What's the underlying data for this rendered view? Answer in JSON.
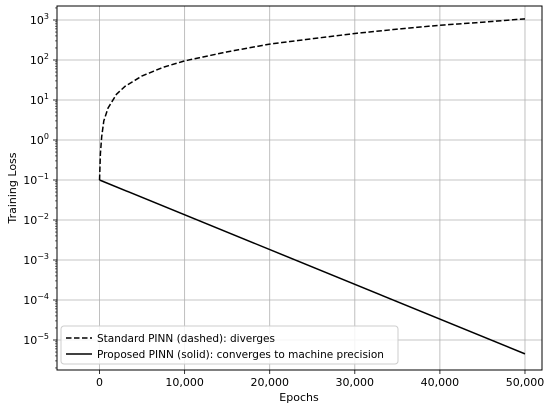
{
  "chart_data": {
    "type": "line",
    "title": "",
    "xlabel": "Epochs",
    "ylabel": "Training Loss",
    "xlim": [
      -5000,
      52000
    ],
    "ylim_log10": [
      -5.75,
      3.35
    ],
    "yscale": "log",
    "grid": true,
    "legend_position": "lower-left",
    "x_ticks": [
      0,
      10000,
      20000,
      30000,
      40000,
      50000
    ],
    "x_tick_labels": [
      "0",
      "10,000",
      "20,000",
      "30,000",
      "40,000",
      "50,000"
    ],
    "y_ticks_exponent": [
      -5,
      -4,
      -3,
      -2,
      -1,
      0,
      1,
      2,
      3
    ],
    "series": [
      {
        "name": "Standard PINN (dashed): diverges",
        "style": "dashed",
        "color": "#000000",
        "x": [
          0,
          100,
          250,
          500,
          1000,
          2000,
          3000,
          5000,
          7500,
          10000,
          15000,
          20000,
          25000,
          30000,
          35000,
          40000,
          45000,
          50000
        ],
        "y": [
          0.1,
          0.45,
          1.2,
          3.0,
          6.3,
          14,
          22,
          40,
          66,
          95,
          160,
          250,
          340,
          460,
          590,
          740,
          880,
          1070
        ]
      },
      {
        "name": "Proposed PINN (solid): converges to machine precision",
        "style": "solid",
        "color": "#000000",
        "x": [
          0,
          50000
        ],
        "y": [
          0.1,
          4.5e-06
        ]
      }
    ]
  }
}
